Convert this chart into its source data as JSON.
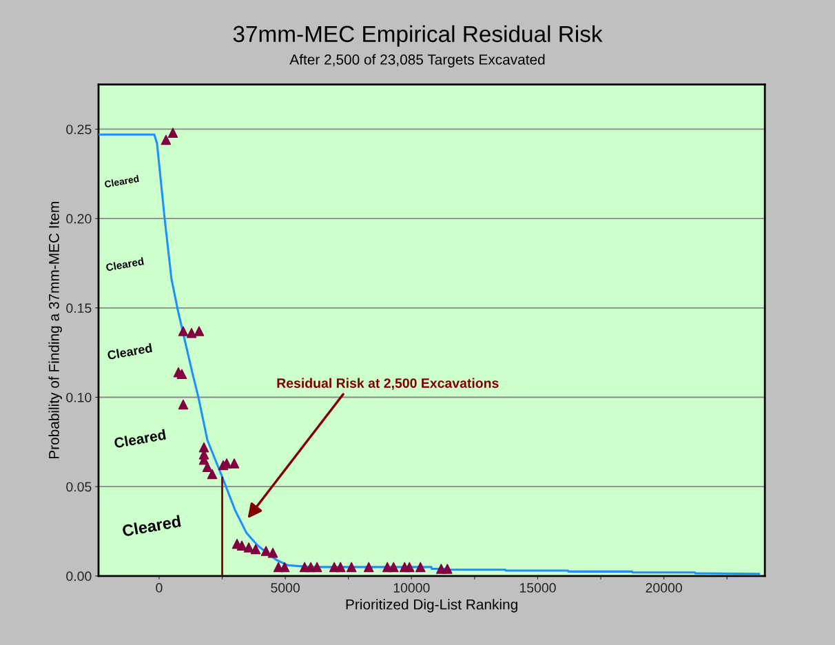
{
  "chart_data": {
    "type": "scatter",
    "title": "37mm-MEC Empirical Residual Risk",
    "subtitle": "After 2,500 of 23,085 Targets Excavated",
    "xlabel": "Prioritized Dig-List Ranking",
    "ylabel": "Probability of Finding a 37mm-MEC Item",
    "series": [
      {
        "type": "line",
        "color": "#1e8fff",
        "marker": "none",
        "x": [
          -2400,
          -190,
          -82,
          219,
          492,
          738,
          902,
          1311,
          1557,
          1913,
          2514,
          3005,
          3465,
          3907,
          4645,
          5100,
          6000,
          8000,
          10790,
          10800,
          11420,
          11430,
          13720,
          13730,
          16200,
          16210,
          18740,
          18750,
          21230,
          21240,
          23770
        ],
        "values": [
          0.247,
          0.247,
          0.242,
          0.2,
          0.166,
          0.149,
          0.139,
          0.114,
          0.1,
          0.076,
          0.055,
          0.037,
          0.024,
          0.017,
          0.009,
          0.006,
          0.005,
          0.005,
          0.005,
          0.004,
          0.004,
          0.0035,
          0.0035,
          0.003,
          0.003,
          0.0025,
          0.0025,
          0.002,
          0.002,
          0.0015,
          0.0012
        ]
      },
      {
        "color": "#800040",
        "marker": "triangle",
        "x": [
          273,
          546,
          956,
          1284,
          1585,
          765,
          902,
          956,
          1776,
          1776,
          1776,
          1913,
          2104,
          2541,
          2678,
          2978,
          3087,
          3279,
          3552,
          3825,
          4235,
          4508,
          4727,
          4973,
          5765,
          6011,
          6257,
          6940,
          7186,
          7623,
          8306,
          9044,
          9290,
          9727,
          9918,
          10355,
          11175,
          11421
        ],
        "values": [
          0.244,
          0.248,
          0.137,
          0.136,
          0.137,
          0.114,
          0.113,
          0.096,
          0.072,
          0.068,
          0.065,
          0.061,
          0.057,
          0.062,
          0.063,
          0.063,
          0.018,
          0.017,
          0.016,
          0.015,
          0.014,
          0.013,
          0.005,
          0.005,
          0.005,
          0.005,
          0.005,
          0.005,
          0.005,
          0.005,
          0.005,
          0.005,
          0.005,
          0.005,
          0.005,
          0.005,
          0.004,
          0.004
        ]
      },
      {
        "type": "line",
        "color": "#800000",
        "marker": "none",
        "x": [
          2500,
          2500
        ],
        "values": [
          0,
          0.055
        ]
      }
    ],
    "xlim": [
      -2400,
      24000
    ],
    "xticks": [
      0,
      {
        "value": 2500,
        "label": null
      },
      5000,
      {
        "value": 7500,
        "label": null
      },
      10000,
      {
        "value": 12500,
        "label": null
      },
      15000,
      {
        "value": 17500,
        "label": null
      },
      20000,
      {
        "value": 22500,
        "label": null
      }
    ],
    "ylim": [
      0,
      0.275
    ],
    "yticks": [
      {
        "value": 0,
        "label": "0.00"
      },
      {
        "value": 0.05,
        "label": "0.05"
      },
      {
        "value": 0.1,
        "label": "0.10"
      },
      {
        "value": 0.15,
        "label": "0.15"
      },
      {
        "value": 0.2,
        "label": "0.20"
      },
      {
        "value": 0.25,
        "label": "0.25"
      }
    ],
    "grid": "y",
    "legend": false,
    "annotations": [
      "Cleared",
      "Cleared",
      "Cleared",
      "Cleared",
      "Cleared",
      "Residual Risk at 2,500 Excavations"
    ]
  }
}
